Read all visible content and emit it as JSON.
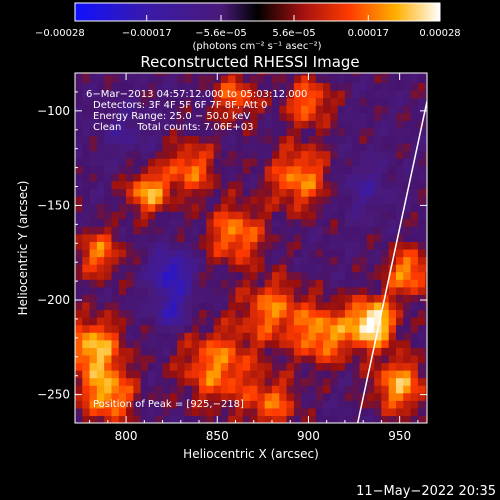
{
  "chart_data": {
    "type": "heatmap",
    "title": "Reconstructed RHESSI Image",
    "xlabel": "Heliocentric X (arcsec)",
    "ylabel": "Heliocentric Y (arcsec)",
    "xlim": [
      772,
      965
    ],
    "ylim": [
      -265,
      -80
    ],
    "x_ticks": [
      800,
      850,
      900,
      950
    ],
    "y_ticks": [
      -100,
      -150,
      -200,
      -250
    ],
    "x_tick_labels": [
      "800",
      "850",
      "900",
      "950"
    ],
    "y_tick_labels": [
      "−100",
      "−150",
      "−200",
      "−250"
    ],
    "colorbar": {
      "min": -0.00028,
      "max": 0.00028,
      "colormap": "blue-purple-red-yellow-white",
      "ticks": [
        -0.00028,
        -0.00017,
        -5.6e-05,
        5.6e-05,
        0.00017,
        0.00028
      ],
      "tick_labels": [
        "−0.00028",
        "−0.00017",
        "−5.6e−05",
        "5.6e−05",
        "0.00017",
        "0.00028"
      ],
      "unit_label": "(photons cm⁻² s⁻¹ asec⁻²)"
    },
    "info_lines": [
      "6−Mar−2013 04:57:12.000 to 05:03:12.000",
      "Detectors: 3F 4F 5F 6F 7F 8F, Att 0",
      "Energy Range: 25.0 − 50.0 keV",
      "Clean     Total counts: 7.06E+03"
    ],
    "peak_label": "Position of Peak = [925,−218]",
    "peak_position": [
      925,
      -218
    ],
    "limb_points": [
      [
        927,
        -265
      ],
      [
        965,
        -95
      ]
    ],
    "hotspots": [
      {
        "x": 935,
        "y": -212,
        "sigma": 9,
        "amp": 1.0
      },
      {
        "x": 908,
        "y": -218,
        "sigma": 11,
        "amp": 0.65
      },
      {
        "x": 850,
        "y": -235,
        "sigma": 14,
        "amp": 0.6
      },
      {
        "x": 880,
        "y": -205,
        "sigma": 12,
        "amp": 0.55
      },
      {
        "x": 782,
        "y": -225,
        "sigma": 11,
        "amp": 0.75
      },
      {
        "x": 785,
        "y": -175,
        "sigma": 9,
        "amp": 0.55
      },
      {
        "x": 812,
        "y": -143,
        "sigma": 8,
        "amp": 0.7
      },
      {
        "x": 835,
        "y": -130,
        "sigma": 10,
        "amp": 0.55
      },
      {
        "x": 860,
        "y": -165,
        "sigma": 11,
        "amp": 0.6
      },
      {
        "x": 895,
        "y": -135,
        "sigma": 12,
        "amp": 0.6
      },
      {
        "x": 900,
        "y": -95,
        "sigma": 9,
        "amp": 0.55
      },
      {
        "x": 860,
        "y": -92,
        "sigma": 9,
        "amp": 0.5
      },
      {
        "x": 955,
        "y": -185,
        "sigma": 9,
        "amp": 0.65
      },
      {
        "x": 950,
        "y": -245,
        "sigma": 10,
        "amp": 0.7
      },
      {
        "x": 790,
        "y": -250,
        "sigma": 10,
        "amp": 0.7
      },
      {
        "x": 880,
        "y": -255,
        "sigma": 10,
        "amp": 0.5
      }
    ],
    "coldspots": [
      {
        "x": 825,
        "y": -185,
        "sigma": 8,
        "amp": 0.8
      },
      {
        "x": 825,
        "y": -205,
        "sigma": 7,
        "amp": 0.6
      },
      {
        "x": 930,
        "y": -140,
        "sigma": 10,
        "amp": 0.35
      },
      {
        "x": 800,
        "y": -110,
        "sigma": 10,
        "amp": 0.3
      }
    ]
  },
  "footer": {
    "timestamp": "11−May−2022 20:35"
  }
}
